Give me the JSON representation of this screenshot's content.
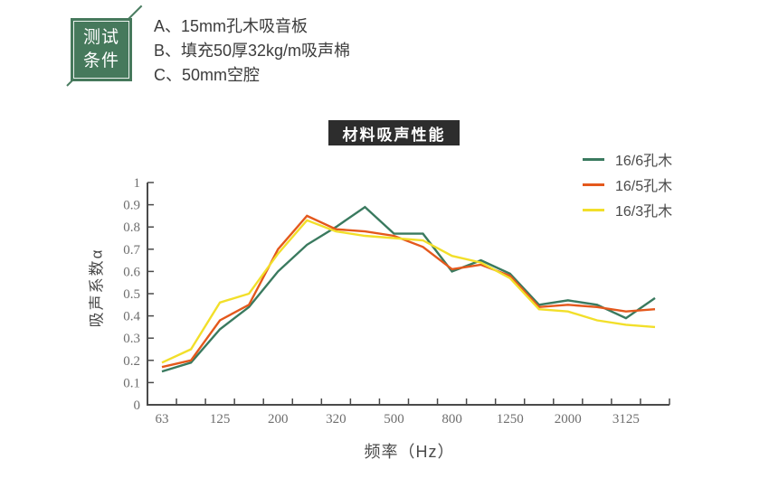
{
  "badge": {
    "line1": "测试",
    "line2": "条件",
    "bg_color": "#46795c"
  },
  "conditions": {
    "items": {
      "a": "A、15mm孔木吸音板",
      "b": "B、填充50厚32kg/m吸声棉",
      "c": "C、50mm空腔"
    }
  },
  "title_bar": {
    "label": "材料吸声性能",
    "bg_color": "#2d2d2d"
  },
  "chart_data": {
    "type": "line",
    "title": "材料吸声性能",
    "xlabel": "频率（Hz）",
    "ylabel": "吸声系数α",
    "ylim": [
      0,
      1
    ],
    "grid": false,
    "legend_position": "top-right",
    "y_ticks": [
      "0",
      "0.1",
      "0.2",
      "0.3",
      "0.4",
      "0.5",
      "0.6",
      "0.7",
      "0.8",
      "0.9",
      "1"
    ],
    "categories": [
      "63",
      "",
      "125",
      "",
      "200",
      "",
      "320",
      "",
      "500",
      "",
      "800",
      "",
      "1250",
      "",
      "2000",
      "",
      "3125",
      ""
    ],
    "series": [
      {
        "name": "16/6孔木",
        "color": "#3a7a5f",
        "values": [
          0.15,
          0.19,
          0.34,
          0.44,
          0.6,
          0.72,
          0.8,
          0.89,
          0.77,
          0.77,
          0.6,
          0.65,
          0.59,
          0.45,
          0.47,
          0.45,
          0.39,
          0.48
        ]
      },
      {
        "name": "16/5孔木",
        "color": "#e4581c",
        "values": [
          0.17,
          0.2,
          0.38,
          0.45,
          0.7,
          0.85,
          0.79,
          0.78,
          0.76,
          0.71,
          0.61,
          0.63,
          0.58,
          0.44,
          0.45,
          0.44,
          0.42,
          0.43
        ]
      },
      {
        "name": "16/3孔木",
        "color": "#f2df2a",
        "values": [
          0.19,
          0.25,
          0.46,
          0.5,
          0.68,
          0.83,
          0.78,
          0.76,
          0.75,
          0.74,
          0.67,
          0.64,
          0.57,
          0.43,
          0.42,
          0.38,
          0.36,
          0.35
        ]
      }
    ]
  }
}
